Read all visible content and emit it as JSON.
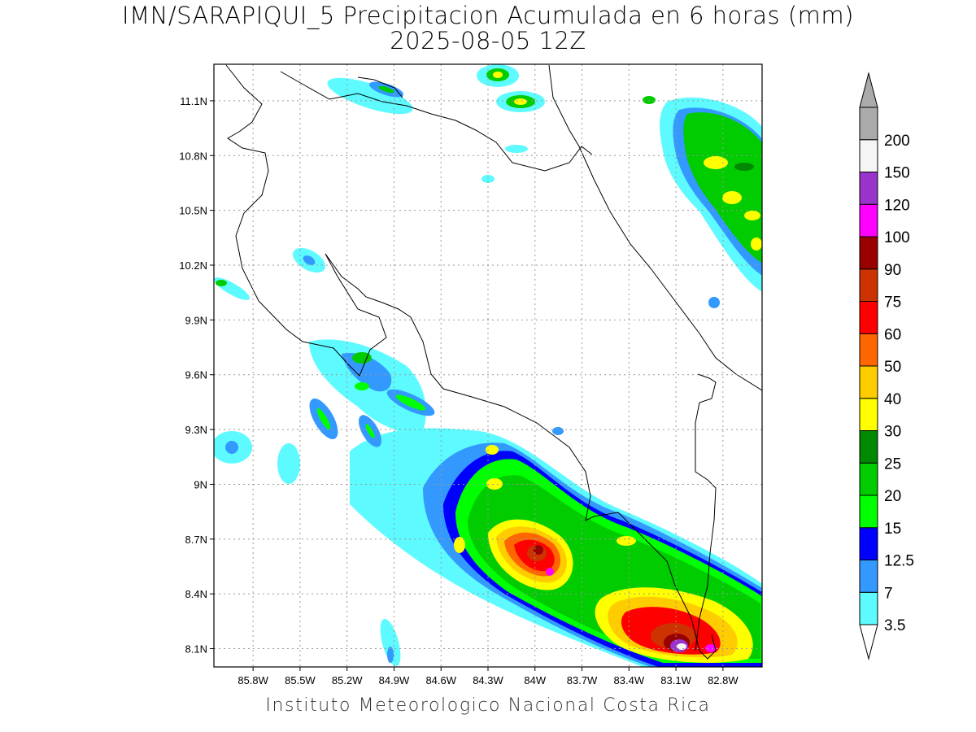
{
  "title": {
    "line1": "IMN/SARAPIQUI_5 Precipitacion Acumulada en 6 horas (mm)",
    "line2": "2025-08-05 12Z"
  },
  "footer": "Instituto Meteorologico Nacional Costa Rica",
  "map": {
    "lon_range": [
      -86.05,
      -82.55
    ],
    "lat_range": [
      8.0,
      11.3
    ],
    "lon_ticks": [
      {
        "value": -85.8,
        "label": "85.8W"
      },
      {
        "value": -85.5,
        "label": "85.5W"
      },
      {
        "value": -85.2,
        "label": "85.2W"
      },
      {
        "value": -84.9,
        "label": "84.9W"
      },
      {
        "value": -84.6,
        "label": "84.6W"
      },
      {
        "value": -84.3,
        "label": "84.3W"
      },
      {
        "value": -84.0,
        "label": "84W"
      },
      {
        "value": -83.7,
        "label": "83.7W"
      },
      {
        "value": -83.4,
        "label": "83.4W"
      },
      {
        "value": -83.1,
        "label": "83.1W"
      },
      {
        "value": -82.8,
        "label": "82.8W"
      }
    ],
    "lat_ticks": [
      {
        "value": 8.1,
        "label": "8.1N"
      },
      {
        "value": 8.4,
        "label": "8.4N"
      },
      {
        "value": 8.7,
        "label": "8.7N"
      },
      {
        "value": 9.0,
        "label": "9N"
      },
      {
        "value": 9.3,
        "label": "9.3N"
      },
      {
        "value": 9.6,
        "label": "9.6N"
      },
      {
        "value": 9.9,
        "label": "9.9N"
      },
      {
        "value": 10.2,
        "label": "10.2N"
      },
      {
        "value": 10.5,
        "label": "10.5N"
      },
      {
        "value": 10.8,
        "label": "10.8N"
      },
      {
        "value": 11.1,
        "label": "11.1N"
      }
    ],
    "grid": true
  },
  "colorbar": {
    "levels": [
      {
        "label": "3.5",
        "color": "#5dfbff"
      },
      {
        "label": "7",
        "color": "#3399ff"
      },
      {
        "label": "12.5",
        "color": "#0000ff"
      },
      {
        "label": "15",
        "color": "#00ff00"
      },
      {
        "label": "20",
        "color": "#00cc00"
      },
      {
        "label": "25",
        "color": "#008800"
      },
      {
        "label": "30",
        "color": "#ffff00"
      },
      {
        "label": "40",
        "color": "#ffcc00"
      },
      {
        "label": "50",
        "color": "#ff6600"
      },
      {
        "label": "60",
        "color": "#ff0000"
      },
      {
        "label": "75",
        "color": "#cc3300"
      },
      {
        "label": "90",
        "color": "#990000"
      },
      {
        "label": "100",
        "color": "#ff00ff"
      },
      {
        "label": "120",
        "color": "#9933cc"
      },
      {
        "label": "150",
        "color": "#f5f5f5"
      },
      {
        "label": "200",
        "color": "#aaaaaa"
      }
    ],
    "min_arrow_color": "#ffffff",
    "max_arrow_color": "#aaaaaa"
  }
}
